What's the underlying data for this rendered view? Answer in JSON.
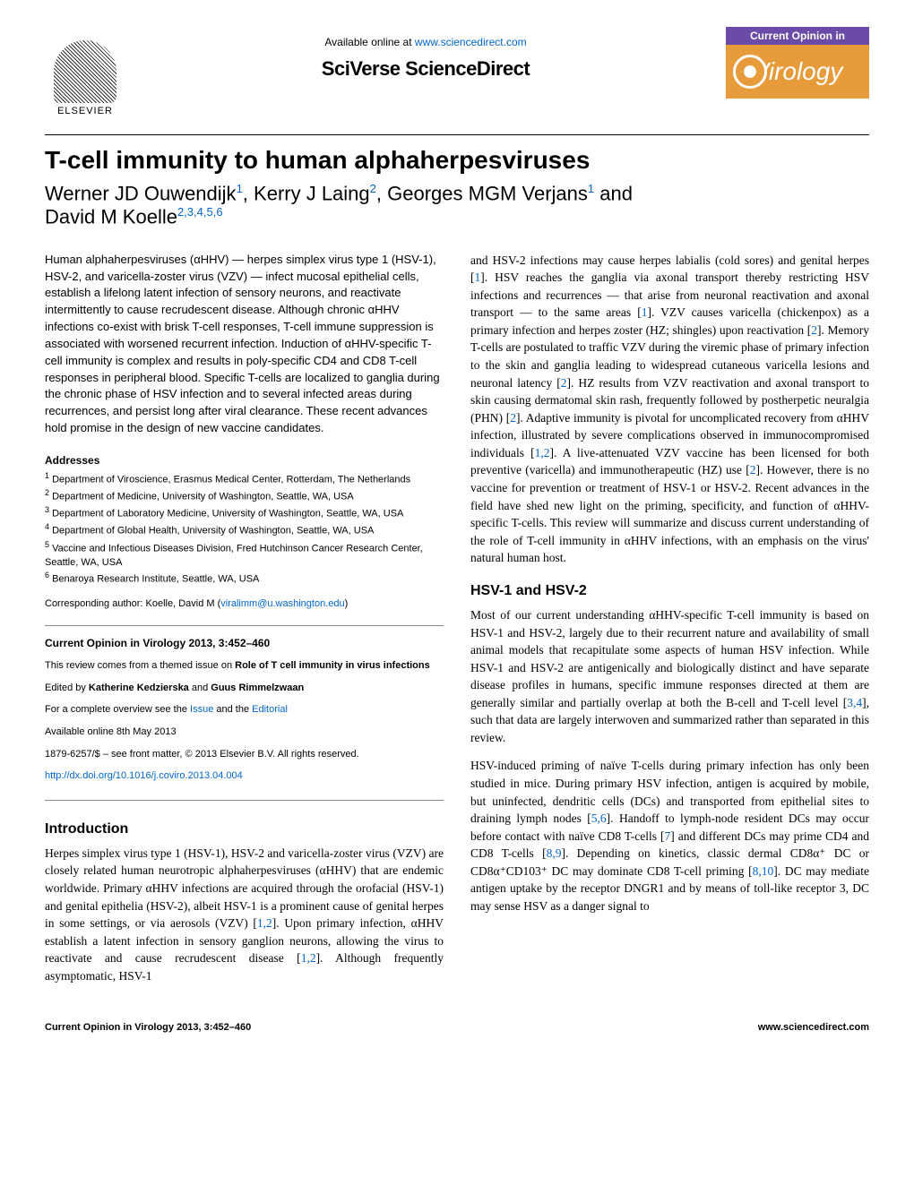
{
  "header": {
    "available_prefix": "Available online at ",
    "available_link": "www.sciencedirect.com",
    "sciverse": "SciVerse ScienceDirect",
    "elsevier_label": "ELSEVIER",
    "current_opinion": "Current Opinion in",
    "virology": "Virology"
  },
  "title": "T-cell immunity to human alphaherpesviruses",
  "authors_html": "Werner JD Ouwendijk",
  "author1": "Werner JD Ouwendijk",
  "author1_sup": "1",
  "author2": "Kerry J Laing",
  "author2_sup": "2",
  "author3": "Georges MGM Verjans",
  "author3_sup": "1",
  "author_and": " and",
  "author4": "David M Koelle",
  "author4_sup": "2,3,4,5,6",
  "abstract": "Human alphaherpesviruses (αHHV) — herpes simplex virus type 1 (HSV-1), HSV-2, and varicella-zoster virus (VZV) — infect mucosal epithelial cells, establish a lifelong latent infection of sensory neurons, and reactivate intermittently to cause recrudescent disease. Although chronic αHHV infections co-exist with brisk T-cell responses, T-cell immune suppression is associated with worsened recurrent infection. Induction of αHHV-specific T-cell immunity is complex and results in poly-specific CD4 and CD8 T-cell responses in peripheral blood. Specific T-cells are localized to ganglia during the chronic phase of HSV infection and to several infected areas during recurrences, and persist long after viral clearance. These recent advances hold promise in the design of new vaccine candidates.",
  "addresses_head": "Addresses",
  "addresses": {
    "a1": "Department of Viroscience, Erasmus Medical Center, Rotterdam, The Netherlands",
    "a2": "Department of Medicine, University of Washington, Seattle, WA, USA",
    "a3": "Department of Laboratory Medicine, University of Washington, Seattle, WA, USA",
    "a4": "Department of Global Health, University of Washington, Seattle, WA, USA",
    "a5": "Vaccine and Infectious Diseases Division, Fred Hutchinson Cancer Research Center, Seattle, WA, USA",
    "a6": "Benaroya Research Institute, Seattle, WA, USA"
  },
  "corresponding_prefix": "Corresponding author: Koelle, David M (",
  "corresponding_email": "viralimm@u.washington.edu",
  "corresponding_suffix": ")",
  "infobox": {
    "journal_ref": "Current Opinion in Virology 2013, 3:452–460",
    "themed_prefix": "This review comes from a themed issue on ",
    "themed_bold": "Role of T cell immunity in virus infections",
    "edited_prefix": "Edited by ",
    "editor1": "Katherine Kedzierska",
    "editor_and": " and ",
    "editor2": "Guus Rimmelzwaan",
    "overview_prefix": "For a complete overview see the ",
    "overview_link1": "Issue",
    "overview_mid": " and the ",
    "overview_link2": "Editorial",
    "available_online": "Available online 8th May 2013",
    "issn": "1879-6257/$ – see front matter, © 2013 Elsevier B.V. All rights reserved.",
    "doi": "http://dx.doi.org/10.1016/j.coviro.2013.04.004"
  },
  "sections": {
    "intro_head": "Introduction",
    "intro_p1_a": "Herpes simplex virus type 1 (HSV-1), HSV-2 and varicella-zoster virus (VZV) are closely related human neurotropic alphaherpesviruses (αHHV) that are endemic worldwide. Primary αHHV infections are acquired through the orofacial (HSV-1) and genital epithelia (HSV-2), albeit HSV-1 is a prominent cause of genital herpes in some settings, or via aerosols (VZV) [",
    "intro_ref1": "1,2",
    "intro_p1_b": "]. Upon primary infection, αHHV establish a latent infection in sensory ganglion neurons, allowing the virus to reactivate and cause recrudescent disease [",
    "intro_ref2": "1,2",
    "intro_p1_c": "]. Although frequently asymptomatic, HSV-1",
    "col2_p1_a": "and HSV-2 infections may cause herpes labialis (cold sores) and genital herpes [",
    "col2_ref1": "1",
    "col2_p1_b": "]. HSV reaches the ganglia via axonal transport thereby restricting HSV infections and recurrences — that arise from neuronal reactivation and axonal transport — to the same areas [",
    "col2_ref2": "1",
    "col2_p1_c": "]. VZV causes varicella (chickenpox) as a primary infection and herpes zoster (HZ; shingles) upon reactivation [",
    "col2_ref3": "2",
    "col2_p1_d": "]. Memory T-cells are postulated to traffic VZV during the viremic phase of primary infection to the skin and ganglia leading to widespread cutaneous varicella lesions and neuronal latency [",
    "col2_ref4": "2",
    "col2_p1_e": "]. HZ results from VZV reactivation and axonal transport to skin causing dermatomal skin rash, frequently followed by postherpetic neuralgia (PHN) [",
    "col2_ref5": "2",
    "col2_p1_f": "]. Adaptive immunity is pivotal for uncomplicated recovery from αHHV infection, illustrated by severe complications observed in immunocompromised individuals [",
    "col2_ref6": "1,2",
    "col2_p1_g": "]. A live-attenuated VZV vaccine has been licensed for both preventive (varicella) and immunotherapeutic (HZ) use [",
    "col2_ref7": "2",
    "col2_p1_h": "]. However, there is no vaccine for prevention or treatment of HSV-1 or HSV-2. Recent advances in the field have shed new light on the priming, specificity, and function of αHHV-specific T-cells. This review will summarize and discuss current understanding of the role of T-cell immunity in αHHV infections, with an emphasis on the virus' natural human host.",
    "hsv_head": "HSV-1 and HSV-2",
    "hsv_p1_a": "Most of our current understanding αHHV-specific T-cell immunity is based on HSV-1 and HSV-2, largely due to their recurrent nature and availability of small animal models that recapitulate some aspects of human HSV infection. While HSV-1 and HSV-2 are antigenically and biologically distinct and have separate disease profiles in humans, specific immune responses directed at them are generally similar and partially overlap at both the B-cell and T-cell level [",
    "hsv_ref1": "3,4",
    "hsv_p1_b": "], such that data are largely interwoven and summarized rather than separated in this review.",
    "hsv_p2_a": "HSV-induced priming of naïve T-cells during primary infection has only been studied in mice. During primary HSV infection, antigen is acquired by mobile, but uninfected, dendritic cells (DCs) and transported from epithelial sites to draining lymph nodes [",
    "hsv_ref2": "5,6",
    "hsv_p2_b": "]. Handoff to lymph-node resident DCs may occur before contact with naïve CD8 T-cells [",
    "hsv_ref3": "7",
    "hsv_p2_c": "] and different DCs may prime CD4 and CD8 T-cells [",
    "hsv_ref4": "8,9",
    "hsv_p2_d": "]. Depending on kinetics, classic dermal CD8α⁺ DC or CD8α⁺CD103⁺ DC may dominate CD8 T-cell priming [",
    "hsv_ref5": "8,10",
    "hsv_p2_e": "]. DC may mediate antigen uptake by the receptor DNGR1 and by means of toll-like receptor 3, DC may sense HSV as a danger signal to"
  },
  "footer": {
    "left": "Current Opinion in Virology 2013, 3:452–460",
    "right": "www.sciencedirect.com"
  },
  "colors": {
    "link": "#0066cc",
    "purple_bar": "#6b4ba8",
    "orange_box": "#e89b3a"
  }
}
